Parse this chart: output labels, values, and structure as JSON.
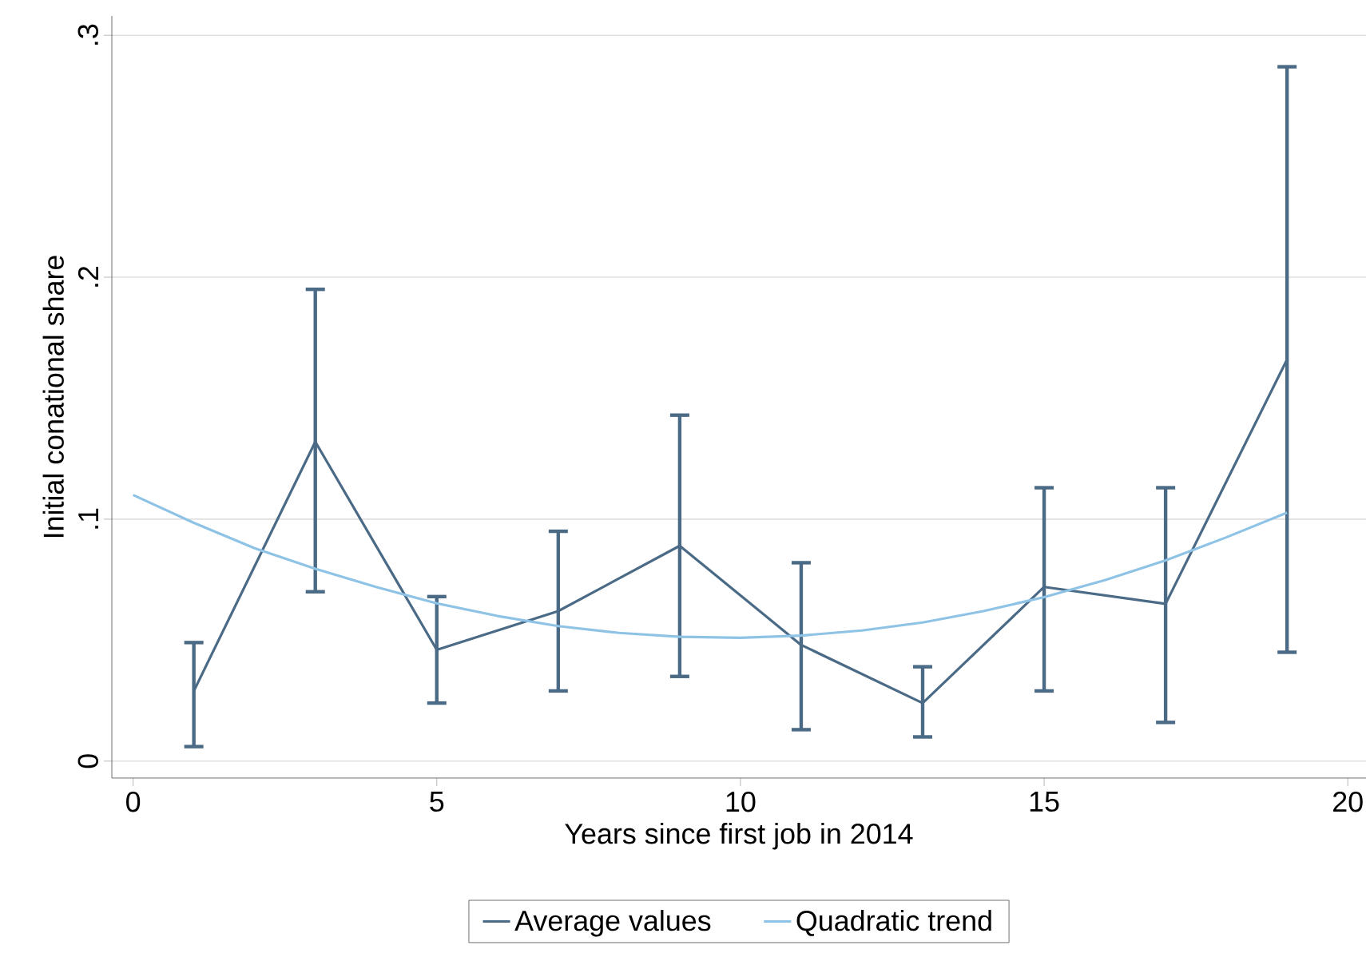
{
  "chart_data": {
    "type": "line",
    "xlabel": "Years since first job in 2014",
    "ylabel": "Initial conational share",
    "xlim": [
      -0.35,
      20.3
    ],
    "ylim": [
      -0.007,
      0.308
    ],
    "xticks": [
      0,
      5,
      10,
      15,
      20
    ],
    "yticks": [
      0,
      {
        "value": 0.1,
        "label": ".1"
      },
      {
        "value": 0.2,
        "label": ".2"
      },
      {
        "value": 0.3,
        "label": ".3"
      }
    ],
    "grid": "y",
    "legend": "bottom",
    "series": [
      {
        "name": "Average values",
        "color": "#4a6a86",
        "x": [
          1,
          3,
          5,
          7,
          9,
          11,
          13,
          15,
          17,
          19
        ],
        "values": [
          0.029,
          0.132,
          0.046,
          0.062,
          0.089,
          0.048,
          0.024,
          0.072,
          0.065,
          0.166
        ],
        "errors": [
          [
            0.006,
            0.049
          ],
          [
            0.07,
            0.195
          ],
          [
            0.024,
            0.068
          ],
          [
            0.029,
            0.095
          ],
          [
            0.035,
            0.143
          ],
          [
            0.013,
            0.082
          ],
          [
            0.01,
            0.039
          ],
          [
            0.029,
            0.113
          ],
          [
            0.016,
            0.113
          ],
          [
            0.045,
            0.287
          ]
        ]
      },
      {
        "name": "Quadratic trend",
        "color": "#8ec3e6",
        "x": [
          0,
          1,
          2,
          3,
          4,
          5,
          6,
          7,
          8,
          9,
          10,
          11,
          12,
          13,
          14,
          15,
          16,
          17,
          18,
          19
        ],
        "values": [
          0.11,
          0.0985,
          0.088,
          0.0795,
          0.072,
          0.0652,
          0.06,
          0.0558,
          0.053,
          0.0514,
          0.051,
          0.0519,
          0.054,
          0.0573,
          0.062,
          0.0678,
          0.0748,
          0.083,
          0.0925,
          0.1027
        ]
      }
    ]
  }
}
